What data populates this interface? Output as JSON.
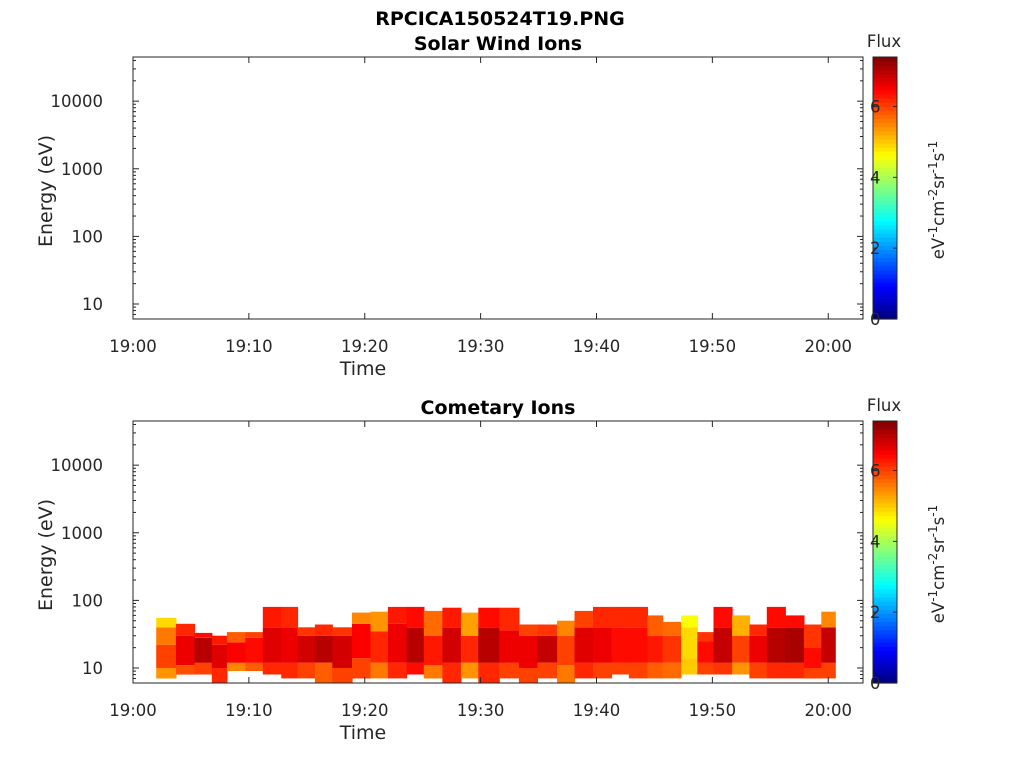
{
  "figure": {
    "title": "RPCICA150524T19.PNG"
  },
  "chart_data": [
    {
      "type": "heatmap",
      "title": "Solar Wind Ions",
      "xlabel": "Time",
      "ylabel": "Energy (eV)",
      "x_ticks": [
        "19:00",
        "19:10",
        "19:20",
        "19:30",
        "19:40",
        "19:50",
        "20:00"
      ],
      "y_scale": "log",
      "y_ticks": [
        "10",
        "100",
        "1000",
        "10000"
      ],
      "y_tick_values": [
        10,
        100,
        1000,
        10000
      ],
      "ylim": [
        6,
        45000
      ],
      "xlim_minutes": [
        0,
        63
      ],
      "colorbar": {
        "label": "Flux",
        "unit": "eV-1cm-2sr-1s-1",
        "range": [
          0,
          7.4
        ],
        "ticks": [
          "0",
          "2",
          "4",
          "6"
        ],
        "tick_values": [
          0,
          2,
          4,
          6
        ],
        "colormap": "jet"
      },
      "cells": []
    },
    {
      "type": "heatmap",
      "title": "Cometary Ions",
      "xlabel": "Time",
      "ylabel": "Energy (eV)",
      "x_ticks": [
        "19:00",
        "19:10",
        "19:20",
        "19:30",
        "19:40",
        "19:50",
        "20:00"
      ],
      "y_scale": "log",
      "y_ticks": [
        "10",
        "100",
        "1000",
        "10000"
      ],
      "y_tick_values": [
        10,
        100,
        1000,
        10000
      ],
      "ylim": [
        6,
        45000
      ],
      "xlim_minutes": [
        0,
        63
      ],
      "colorbar": {
        "label": "Flux",
        "unit": "eV-1cm-2sr-1s-1",
        "range": [
          0,
          7.4
        ],
        "ticks": [
          "0",
          "2",
          "4",
          "6"
        ],
        "tick_values": [
          0,
          2,
          4,
          6
        ],
        "colormap": "jet"
      },
      "columns": [
        {
          "t": 2.0,
          "dt": 1.7,
          "bands": [
            [
              7,
              10,
              5.4
            ],
            [
              10,
              22,
              6.0
            ],
            [
              22,
              40,
              5.6
            ],
            [
              40,
              55,
              4.9
            ]
          ]
        },
        {
          "t": 3.7,
          "dt": 1.6,
          "bands": [
            [
              8,
              11,
              5.9
            ],
            [
              11,
              30,
              6.6
            ],
            [
              30,
              45,
              6.2
            ]
          ]
        },
        {
          "t": 5.3,
          "dt": 1.5,
          "bands": [
            [
              8,
              12,
              6.0
            ],
            [
              12,
              28,
              7.0
            ],
            [
              28,
              33,
              6.4
            ]
          ]
        },
        {
          "t": 6.8,
          "dt": 1.3,
          "bands": [
            [
              6,
              10,
              6.2
            ],
            [
              10,
              22,
              6.7
            ],
            [
              22,
              30,
              6.3
            ]
          ]
        },
        {
          "t": 8.1,
          "dt": 1.6,
          "bands": [
            [
              9,
              12,
              5.5
            ],
            [
              12,
              24,
              6.5
            ],
            [
              24,
              34,
              5.8
            ]
          ]
        },
        {
          "t": 9.7,
          "dt": 1.5,
          "bands": [
            [
              9,
              12,
              5.8
            ],
            [
              12,
              28,
              6.4
            ],
            [
              28,
              34,
              6.0
            ]
          ]
        },
        {
          "t": 11.2,
          "dt": 1.6,
          "bands": [
            [
              8,
              12,
              6.2
            ],
            [
              12,
              40,
              6.7
            ],
            [
              40,
              80,
              6.3
            ]
          ]
        },
        {
          "t": 12.8,
          "dt": 1.4,
          "bands": [
            [
              7,
              12,
              6.2
            ],
            [
              12,
              40,
              6.6
            ],
            [
              40,
              80,
              6.2
            ]
          ]
        },
        {
          "t": 14.2,
          "dt": 1.5,
          "bands": [
            [
              7,
              12,
              6.0
            ],
            [
              12,
              30,
              6.8
            ],
            [
              30,
              40,
              6.1
            ]
          ]
        },
        {
          "t": 15.7,
          "dt": 1.5,
          "bands": [
            [
              6,
              12,
              5.8
            ],
            [
              12,
              30,
              7.0
            ],
            [
              30,
              44,
              6.2
            ]
          ]
        },
        {
          "t": 17.2,
          "dt": 1.7,
          "bands": [
            [
              6,
              10,
              6.0
            ],
            [
              10,
              30,
              6.8
            ],
            [
              30,
              40,
              6.1
            ]
          ]
        },
        {
          "t": 18.9,
          "dt": 1.6,
          "bands": [
            [
              7,
              14,
              6.0
            ],
            [
              14,
              45,
              6.5
            ],
            [
              45,
              66,
              5.5
            ]
          ]
        },
        {
          "t": 20.5,
          "dt": 1.5,
          "bands": [
            [
              7,
              12,
              5.6
            ],
            [
              12,
              35,
              6.2
            ],
            [
              35,
              68,
              5.4
            ]
          ]
        },
        {
          "t": 22.0,
          "dt": 1.6,
          "bands": [
            [
              7,
              12,
              6.2
            ],
            [
              12,
              45,
              6.6
            ],
            [
              45,
              80,
              6.3
            ]
          ]
        },
        {
          "t": 23.6,
          "dt": 1.5,
          "bands": [
            [
              8,
              12,
              6.4
            ],
            [
              12,
              40,
              7.0
            ],
            [
              40,
              80,
              6.4
            ]
          ]
        },
        {
          "t": 25.1,
          "dt": 1.6,
          "bands": [
            [
              7,
              11,
              5.6
            ],
            [
              11,
              30,
              6.3
            ],
            [
              30,
              70,
              5.7
            ]
          ]
        },
        {
          "t": 26.7,
          "dt": 1.6,
          "bands": [
            [
              6,
              12,
              6.2
            ],
            [
              12,
              40,
              6.8
            ],
            [
              40,
              78,
              6.3
            ]
          ]
        },
        {
          "t": 28.3,
          "dt": 1.5,
          "bands": [
            [
              7,
              12,
              5.4
            ],
            [
              12,
              30,
              6.2
            ],
            [
              30,
              66,
              5.3
            ]
          ]
        },
        {
          "t": 29.8,
          "dt": 1.8,
          "bands": [
            [
              6,
              12,
              6.2
            ],
            [
              12,
              40,
              7.0
            ],
            [
              40,
              78,
              6.4
            ]
          ]
        },
        {
          "t": 31.6,
          "dt": 1.7,
          "bands": [
            [
              7,
              12,
              6.0
            ],
            [
              12,
              36,
              6.6
            ],
            [
              36,
              78,
              6.2
            ]
          ]
        },
        {
          "t": 33.3,
          "dt": 1.6,
          "bands": [
            [
              6,
              10,
              6.0
            ],
            [
              10,
              30,
              6.6
            ],
            [
              30,
              44,
              6.0
            ]
          ]
        },
        {
          "t": 34.9,
          "dt": 1.7,
          "bands": [
            [
              7,
              12,
              6.0
            ],
            [
              12,
              30,
              6.9
            ],
            [
              30,
              44,
              6.1
            ]
          ]
        },
        {
          "t": 36.6,
          "dt": 1.5,
          "bands": [
            [
              6,
              11,
              5.6
            ],
            [
              11,
              30,
              6.0
            ],
            [
              30,
              50,
              5.5
            ]
          ]
        },
        {
          "t": 38.1,
          "dt": 1.6,
          "bands": [
            [
              7,
              12,
              6.2
            ],
            [
              12,
              40,
              6.7
            ],
            [
              40,
              70,
              6.0
            ]
          ]
        },
        {
          "t": 39.7,
          "dt": 1.6,
          "bands": [
            [
              7,
              12,
              6.0
            ],
            [
              12,
              40,
              6.6
            ],
            [
              40,
              80,
              6.2
            ]
          ]
        },
        {
          "t": 41.3,
          "dt": 1.5,
          "bands": [
            [
              8,
              12,
              6.0
            ],
            [
              12,
              40,
              6.4
            ],
            [
              40,
              80,
              6.2
            ]
          ]
        },
        {
          "t": 42.8,
          "dt": 1.6,
          "bands": [
            [
              7,
              12,
              6.0
            ],
            [
              12,
              40,
              6.4
            ],
            [
              40,
              80,
              6.2
            ]
          ]
        },
        {
          "t": 44.4,
          "dt": 1.3,
          "bands": [
            [
              7,
              12,
              5.8
            ],
            [
              12,
              30,
              6.3
            ],
            [
              30,
              60,
              5.8
            ]
          ]
        },
        {
          "t": 45.7,
          "dt": 1.6,
          "bands": [
            [
              7,
              12,
              5.7
            ],
            [
              12,
              30,
              6.1
            ],
            [
              30,
              48,
              5.7
            ]
          ]
        },
        {
          "t": 47.3,
          "dt": 1.4,
          "bands": [
            [
              8,
              14,
              5.0
            ],
            [
              14,
              40,
              4.9
            ],
            [
              40,
              60,
              4.6
            ]
          ]
        },
        {
          "t": 48.7,
          "dt": 1.4,
          "bands": [
            [
              8,
              12,
              6.0
            ],
            [
              12,
              25,
              6.4
            ],
            [
              25,
              34,
              6.1
            ]
          ]
        },
        {
          "t": 50.1,
          "dt": 1.6,
          "bands": [
            [
              8,
              12,
              6.1
            ],
            [
              12,
              40,
              6.9
            ],
            [
              40,
              80,
              6.4
            ]
          ]
        },
        {
          "t": 51.7,
          "dt": 1.5,
          "bands": [
            [
              8,
              12,
              5.4
            ],
            [
              12,
              30,
              6.0
            ],
            [
              30,
              60,
              5.2
            ]
          ]
        },
        {
          "t": 53.2,
          "dt": 1.5,
          "bands": [
            [
              7,
              12,
              6.0
            ],
            [
              12,
              30,
              6.6
            ],
            [
              30,
              44,
              6.2
            ]
          ]
        },
        {
          "t": 54.7,
          "dt": 1.6,
          "bands": [
            [
              7,
              12,
              6.2
            ],
            [
              12,
              40,
              7.0
            ],
            [
              40,
              80,
              6.4
            ]
          ]
        },
        {
          "t": 56.3,
          "dt": 1.6,
          "bands": [
            [
              7,
              12,
              6.2
            ],
            [
              12,
              40,
              7.1
            ],
            [
              40,
              60,
              6.4
            ]
          ]
        },
        {
          "t": 57.9,
          "dt": 1.5,
          "bands": [
            [
              7,
              10,
              6.0
            ],
            [
              10,
              20,
              6.4
            ],
            [
              20,
              44,
              6.1
            ]
          ]
        },
        {
          "t": 59.4,
          "dt": 1.2,
          "bands": [
            [
              7,
              12,
              6.0
            ],
            [
              12,
              40,
              6.9
            ],
            [
              40,
              68,
              5.5
            ]
          ]
        }
      ]
    }
  ]
}
